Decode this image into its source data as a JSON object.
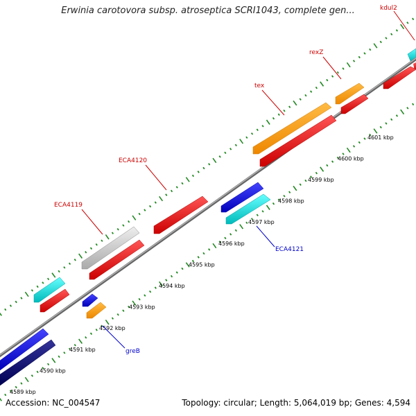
{
  "title": "Erwinia carotovora subsp. atroseptica SCRI1043, complete gen...",
  "footer": {
    "accession": "Accession: NC_004547",
    "summary": "Topology: circular; Length: 5,064,019 bp; Genes: 4,594"
  },
  "ticks": [
    {
      "label": "4589 kbp",
      "pos": 4589
    },
    {
      "label": "4590 kbp",
      "pos": 4590
    },
    {
      "label": "4591 kbp",
      "pos": 4591
    },
    {
      "label": "4592 kbp",
      "pos": 4592
    },
    {
      "label": "4593 kbp",
      "pos": 4593
    },
    {
      "label": "4594 kbp",
      "pos": 4594
    },
    {
      "label": "4595 kbp",
      "pos": 4595
    },
    {
      "label": "4596 kbp",
      "pos": 4596
    },
    {
      "label": "4597 kbp",
      "pos": 4597
    },
    {
      "label": "4598 kbp",
      "pos": 4598
    },
    {
      "label": "4599 kbp",
      "pos": 4599
    },
    {
      "label": "4600 kbp",
      "pos": 4600
    },
    {
      "label": "4601 kbp",
      "pos": 4601
    }
  ],
  "gene_labels": [
    {
      "name": "kdul2",
      "color": "#cc0000"
    },
    {
      "name": "rexZ",
      "color": "#cc0000"
    },
    {
      "name": "tex",
      "color": "#cc0000"
    },
    {
      "name": "ECA4120",
      "color": "#cc0000"
    },
    {
      "name": "ECA4119",
      "color": "#cc0000"
    },
    {
      "name": "ECA4121",
      "color": "#0000cc"
    },
    {
      "name": "greB",
      "color": "#0000cc"
    }
  ],
  "colors": {
    "red": "#ee1111",
    "orange": "#ff9900",
    "cyan": "#11cccc",
    "gray": "#bbbbbb",
    "blue": "#1111dd",
    "navy": "#111177",
    "backbone": "#888888",
    "tick": "#228822"
  }
}
